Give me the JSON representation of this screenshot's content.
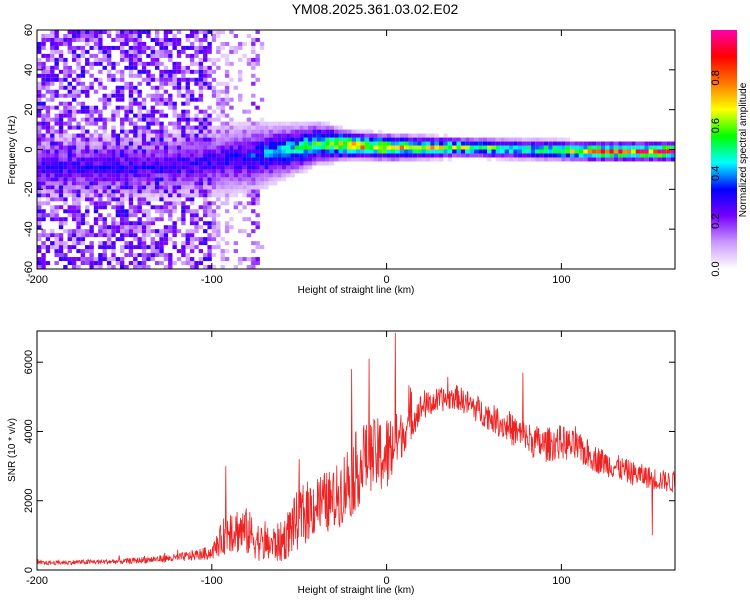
{
  "page": {
    "title": "YM08.2025.361.03.02.E02"
  },
  "chart_data": [
    {
      "type": "heatmap",
      "xlabel": "Height of straight line (km)",
      "ylabel": "Frequency (Hz)",
      "xlim": [
        -200,
        165
      ],
      "ylim": [
        -60,
        60
      ],
      "x_ticks": [
        -200,
        -100,
        0,
        100
      ],
      "x_tick_labels": [
        "-200",
        "-100",
        "0",
        "100"
      ],
      "y_ticks": [
        -60,
        -40,
        -20,
        0,
        20,
        40,
        60
      ],
      "y_tick_labels": [
        "-60",
        "-40",
        "-20",
        "0",
        "20",
        "40",
        "60"
      ],
      "colorbar": {
        "label": "Normalized spectral amplitude",
        "range": [
          0,
          1
        ],
        "ticks": [
          0.0,
          0.2,
          0.4,
          0.6,
          0.8
        ],
        "tick_labels": [
          "0.0",
          "0.2",
          "0.4",
          "0.6",
          "0.8"
        ],
        "colors": [
          "#ffffff",
          "#cc99ff",
          "#7700ff",
          "#0000ff",
          "#00ffff",
          "#00ff00",
          "#ffff00",
          "#ff7700",
          "#ff0000",
          "#ff00aa"
        ]
      },
      "ridge": {
        "description_free": true,
        "points": [
          {
            "x": -140,
            "f": -10,
            "bw": 10,
            "amp": 0.3
          },
          {
            "x": -100,
            "f": -7,
            "bw": 11,
            "amp": 0.3
          },
          {
            "x": -80,
            "f": -5,
            "bw": 11,
            "amp": 0.35
          },
          {
            "x": -60,
            "f": -2,
            "bw": 8,
            "amp": 0.5
          },
          {
            "x": -40,
            "f": 2,
            "bw": 6,
            "amp": 0.6
          },
          {
            "x": -20,
            "f": 1,
            "bw": 4,
            "amp": 0.85
          },
          {
            "x": 0,
            "f": 0,
            "bw": 4,
            "amp": 0.75
          },
          {
            "x": 40,
            "f": 0,
            "bw": 3,
            "amp": 0.65
          },
          {
            "x": 80,
            "f": -1,
            "bw": 3,
            "amp": 0.6
          },
          {
            "x": 120,
            "f": -2,
            "bw": 3,
            "amp": 0.8
          },
          {
            "x": 165,
            "f": -2,
            "bw": 3,
            "amp": 0.9
          }
        ]
      }
    },
    {
      "type": "line",
      "xlabel": "Height of straight line (km)",
      "ylabel": "SNR (10 * v/v)",
      "xlim": [
        -200,
        165
      ],
      "ylim": [
        0,
        6900
      ],
      "x_ticks": [
        -200,
        -100,
        0,
        100
      ],
      "x_tick_labels": [
        "-200",
        "-100",
        "0",
        "100"
      ],
      "y_ticks": [
        0,
        2000,
        4000,
        6000
      ],
      "y_tick_labels": [
        "0",
        "2000",
        "4000",
        "6000"
      ],
      "series": [
        {
          "name": "SNR",
          "color": "#ee2222",
          "envelope_x": [
            -200,
            -150,
            -120,
            -100,
            -90,
            -80,
            -70,
            -60,
            -50,
            -40,
            -30,
            -20,
            -10,
            0,
            10,
            20,
            30,
            40,
            50,
            60,
            70,
            80,
            90,
            100,
            110,
            120,
            140,
            165
          ],
          "envelope_mean": [
            200,
            250,
            350,
            500,
            1200,
            1100,
            700,
            800,
            1500,
            1900,
            2000,
            2700,
            3300,
            3300,
            4000,
            4700,
            4900,
            5000,
            4700,
            4400,
            4100,
            3800,
            3600,
            3700,
            3500,
            3200,
            2800,
            2500
          ],
          "envelope_spread": [
            60,
            80,
            120,
            200,
            700,
            700,
            500,
            600,
            900,
            900,
            900,
            1200,
            1000,
            1200,
            600,
            400,
            350,
            350,
            400,
            400,
            450,
            500,
            500,
            500,
            450,
            400,
            350,
            300
          ],
          "spikes": [
            {
              "x": -92,
              "y": 3000
            },
            {
              "x": -50,
              "y": 3200
            },
            {
              "x": -20,
              "y": 5800
            },
            {
              "x": -10,
              "y": 6100
            },
            {
              "x": 5,
              "y": 6850
            },
            {
              "x": 78,
              "y": 5700
            },
            {
              "x": 108,
              "y": 4150
            },
            {
              "x": 152,
              "y": 1000
            }
          ]
        }
      ]
    }
  ]
}
